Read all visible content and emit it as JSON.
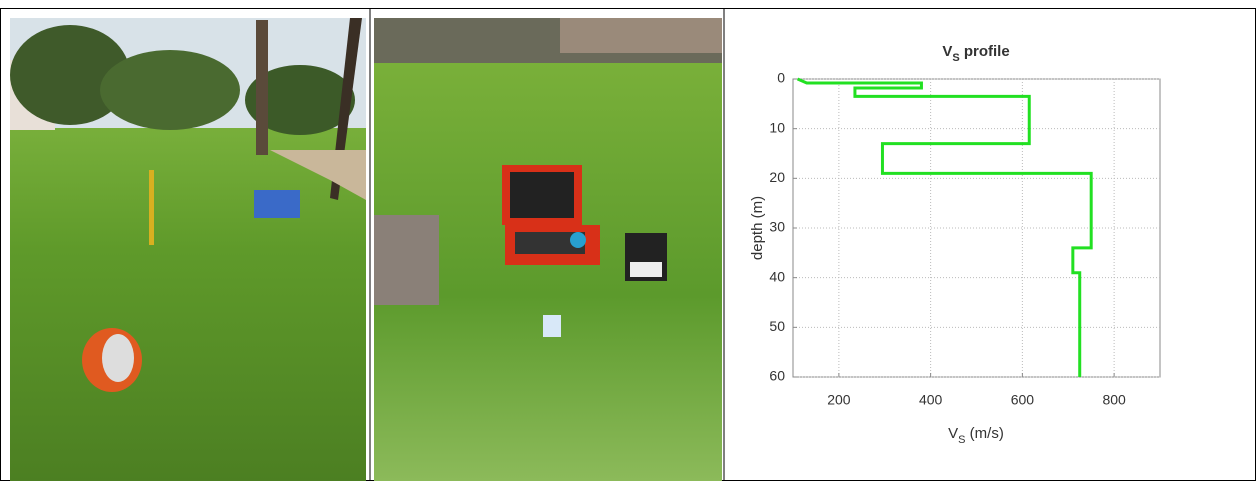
{
  "chart_data": {
    "type": "line",
    "title": {
      "main": "V",
      "sub": "S",
      "rest": " profile"
    },
    "xlabel": {
      "main": "V",
      "sub": "S",
      "rest": " (m/s)"
    },
    "ylabel": "depth (m)",
    "series": [
      {
        "color": "#22e022",
        "x": [
          110,
          130,
          380,
          380,
          235,
          235,
          615,
          615,
          295,
          295,
          750,
          750,
          710,
          710,
          725,
          725
        ],
        "values": [
          0,
          0.8,
          0.8,
          1.8,
          1.8,
          3.5,
          3.5,
          13,
          13,
          19,
          19,
          34,
          34,
          39,
          39,
          60
        ]
      }
    ],
    "xlim": [
      100,
      900
    ],
    "xticks": [
      200,
      400,
      600,
      800
    ],
    "ylim": [
      0,
      60
    ],
    "yticks": [
      0,
      10,
      20,
      30,
      40,
      50,
      60
    ],
    "y_inverted": true,
    "grid": true
  }
}
